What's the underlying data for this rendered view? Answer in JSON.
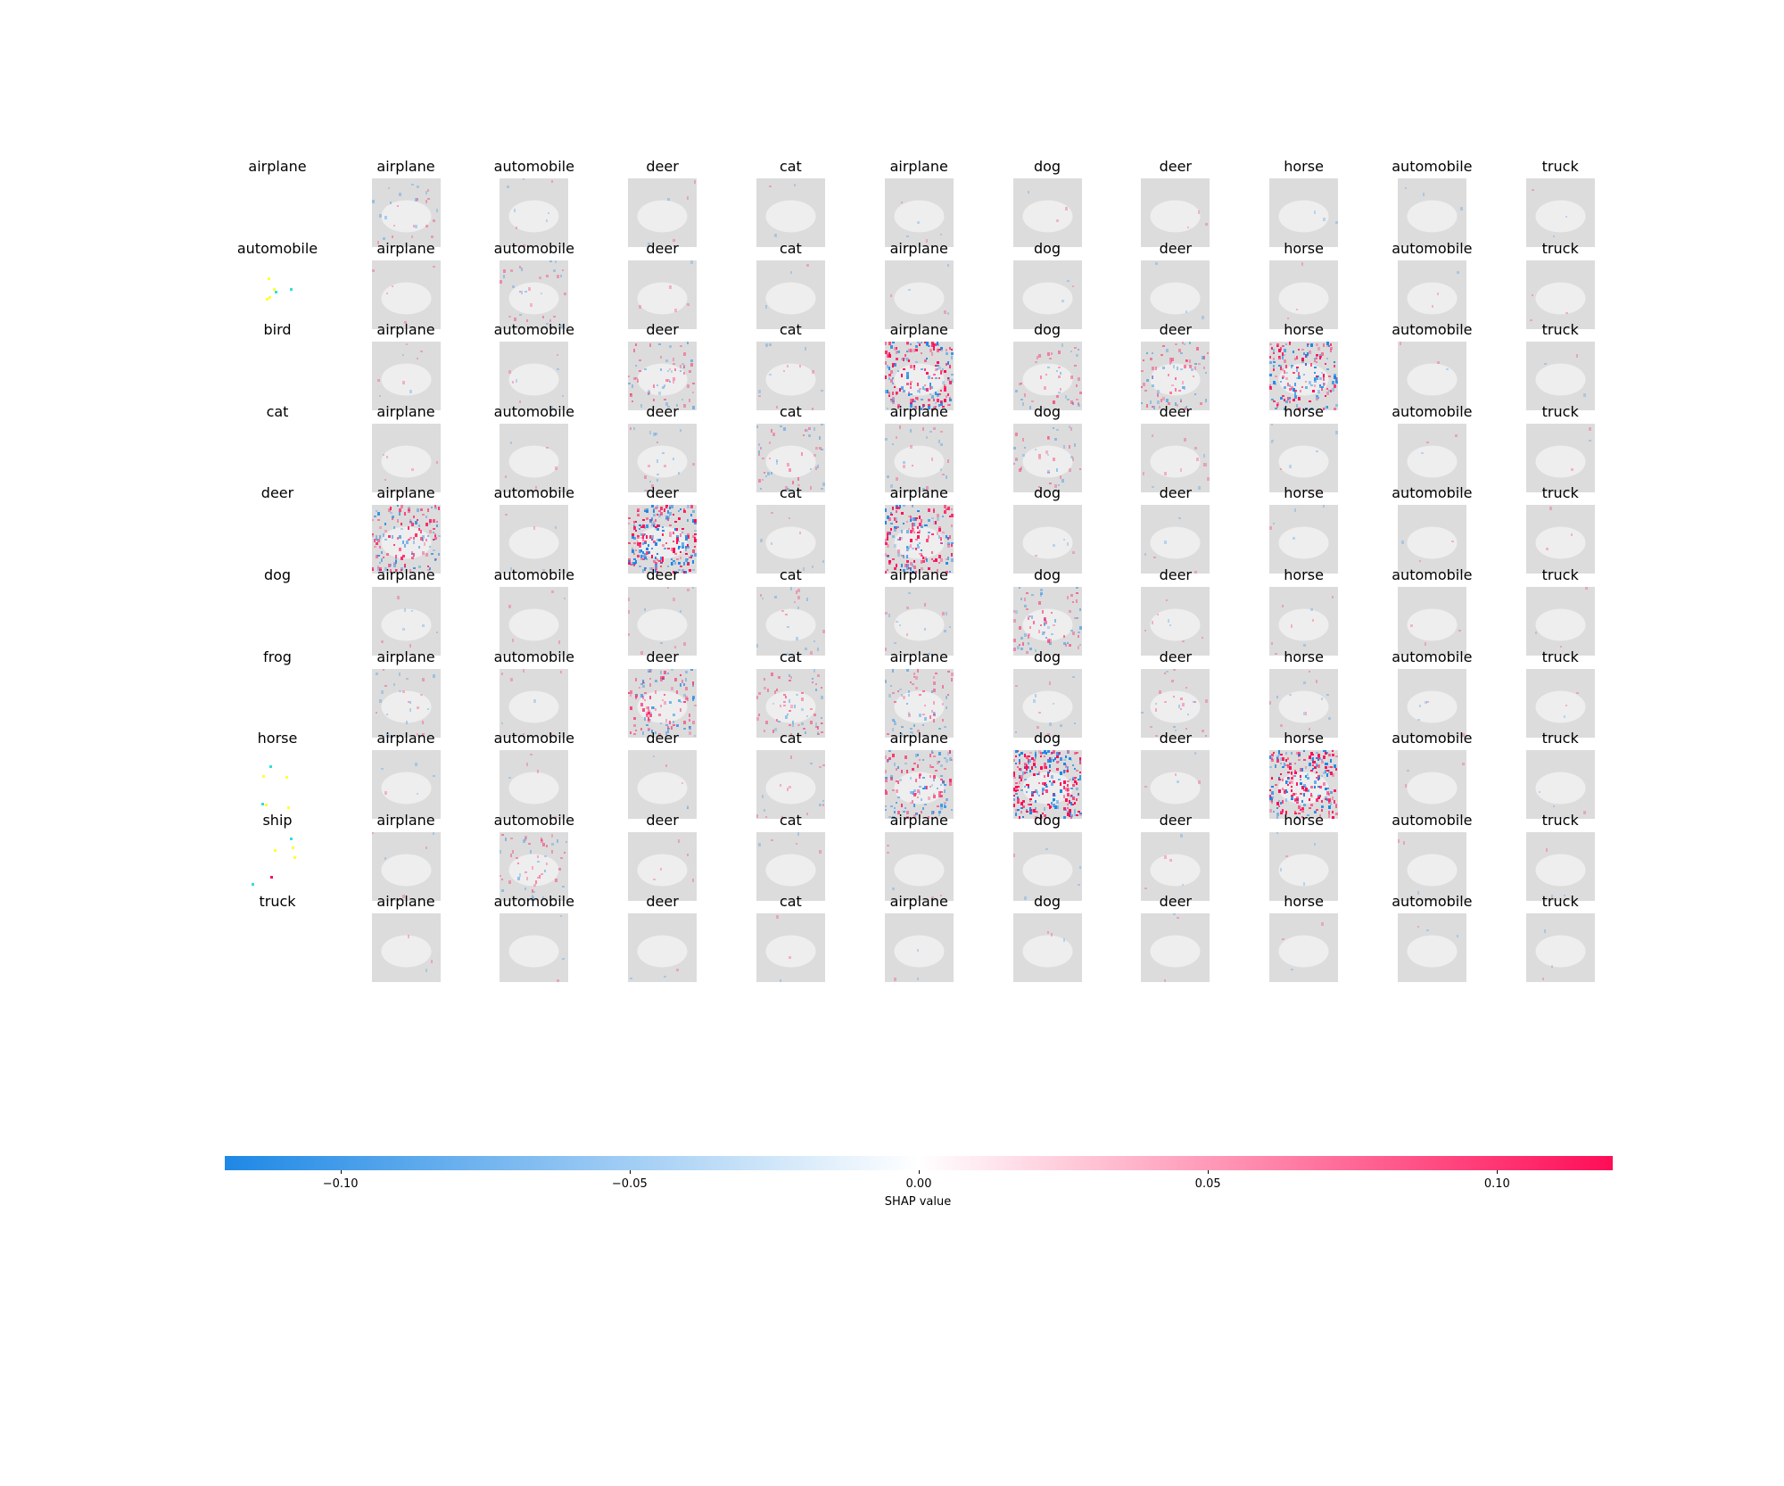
{
  "chart_data": {
    "type": "heatmap",
    "subtype": "shap_image_grid",
    "row_labels": [
      "airplane",
      "automobile",
      "bird",
      "cat",
      "deer",
      "dog",
      "frog",
      "horse",
      "ship",
      "truck"
    ],
    "column_labels": [
      "airplane",
      "automobile",
      "deer",
      "cat",
      "airplane",
      "dog",
      "deer",
      "horse",
      "automobile",
      "truck"
    ],
    "intensity_description": "relative SHAP attribution strength per cell (0 = none, 1 = strongest)",
    "intensity": [
      [
        0.1,
        0.03,
        0.02,
        0.01,
        0.02,
        0.01,
        0.01,
        0.01,
        0.01,
        0.01
      ],
      [
        0.02,
        0.12,
        0.02,
        0.01,
        0.02,
        0.01,
        0.01,
        0.01,
        0.01,
        0.01
      ],
      [
        0.03,
        0.03,
        0.25,
        0.05,
        0.75,
        0.18,
        0.3,
        0.7,
        0.01,
        0.01
      ],
      [
        0.02,
        0.02,
        0.08,
        0.18,
        0.1,
        0.15,
        0.05,
        0.03,
        0.01,
        0.01
      ],
      [
        0.55,
        0.02,
        0.95,
        0.03,
        0.7,
        0.02,
        0.02,
        0.02,
        0.01,
        0.01
      ],
      [
        0.03,
        0.02,
        0.05,
        0.08,
        0.06,
        0.3,
        0.03,
        0.03,
        0.01,
        0.01
      ],
      [
        0.1,
        0.03,
        0.45,
        0.25,
        0.25,
        0.05,
        0.1,
        0.05,
        0.02,
        0.01
      ],
      [
        0.02,
        0.02,
        0.02,
        0.06,
        0.5,
        1.0,
        0.02,
        0.9,
        0.01,
        0.01
      ],
      [
        0.02,
        0.2,
        0.02,
        0.02,
        0.02,
        0.02,
        0.02,
        0.02,
        0.01,
        0.01
      ],
      [
        0.01,
        0.01,
        0.01,
        0.01,
        0.01,
        0.01,
        0.01,
        0.01,
        0.01,
        0.01
      ]
    ],
    "colorbar": {
      "label": "SHAP value",
      "range": [
        -0.12,
        0.12
      ],
      "ticks": [
        -0.1,
        -0.05,
        0.0,
        0.05,
        0.1
      ],
      "tick_labels": [
        "−0.10",
        "−0.05",
        "0.00",
        "0.05",
        "0.10"
      ],
      "negative_color": "#1e88e5",
      "positive_color": "#ff0d57",
      "mid_color": "#ffffff"
    },
    "background_gray": "#dcdcdc"
  }
}
